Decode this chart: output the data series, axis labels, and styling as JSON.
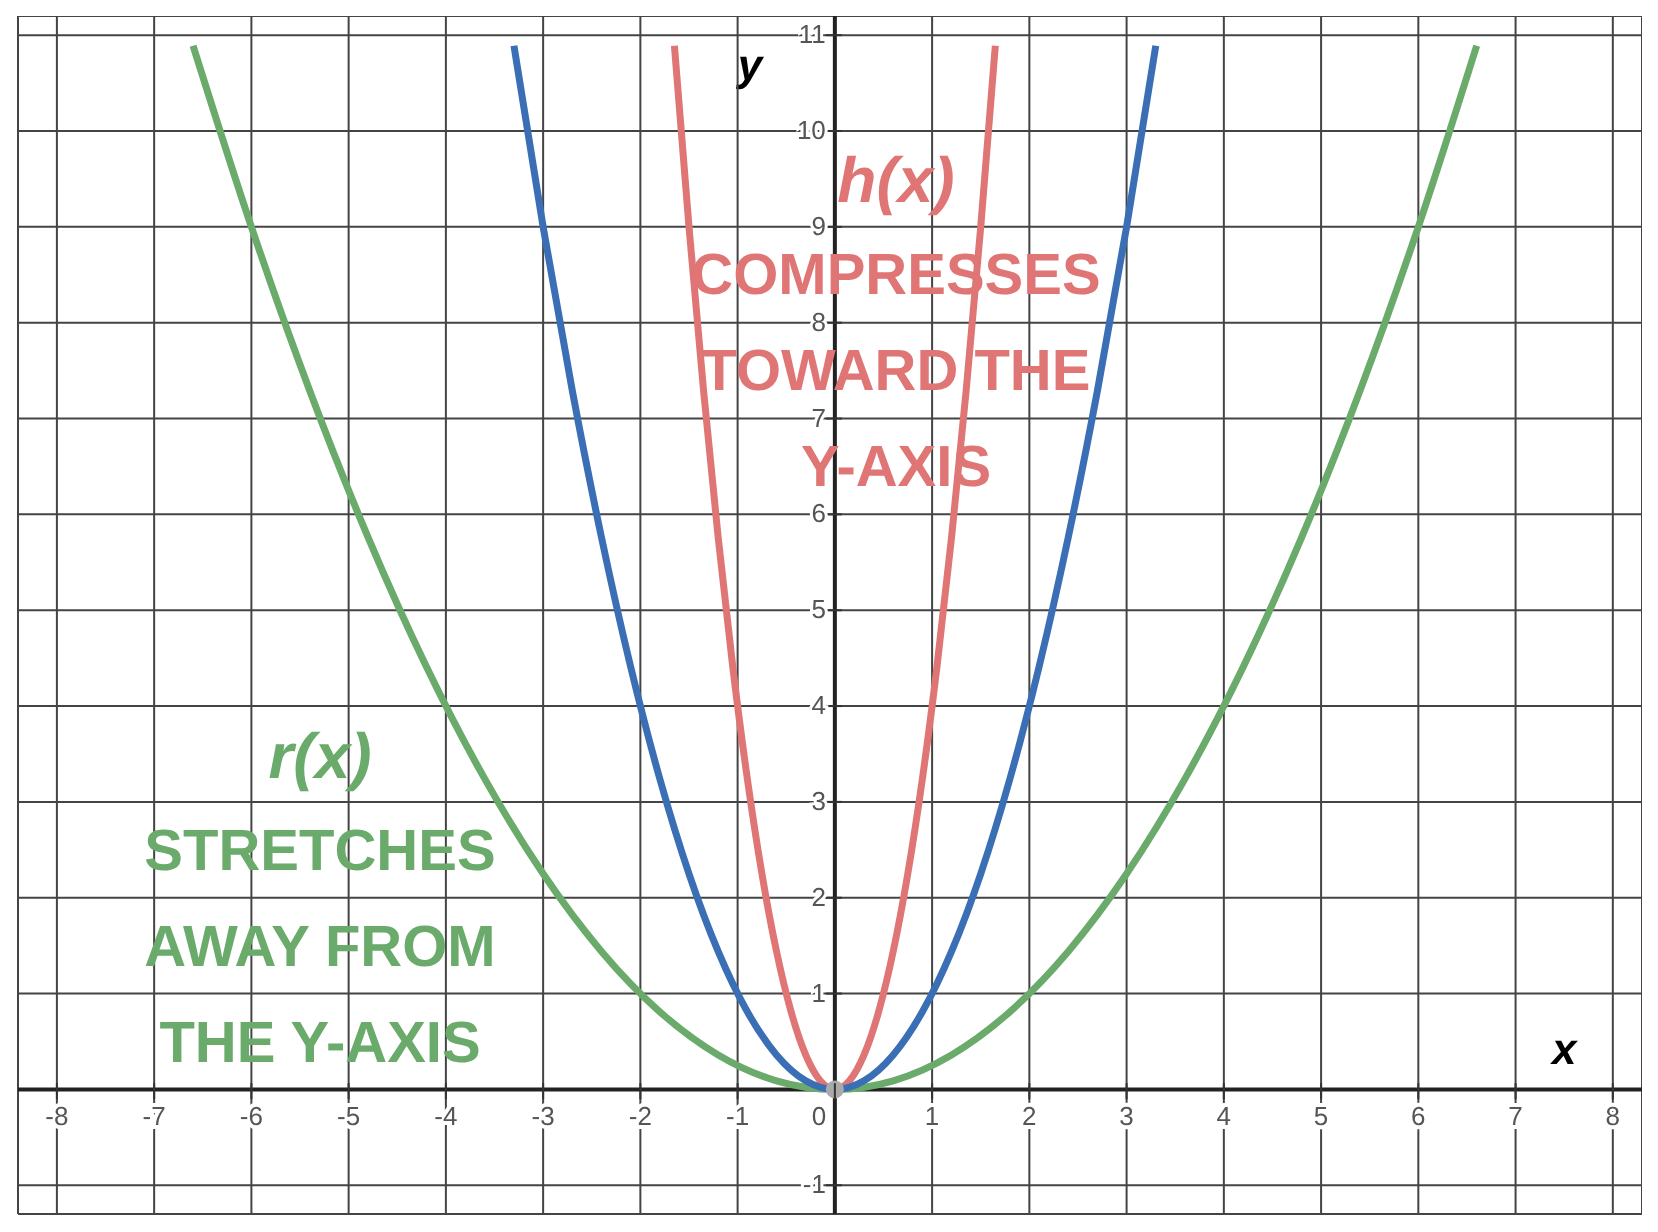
{
  "chart_data": {
    "type": "line",
    "xlabel": "x",
    "ylabel": "y",
    "xlim": [
      -8.4,
      8.3
    ],
    "ylim": [
      -1.3,
      11.2
    ],
    "xticks": [
      -8,
      -7,
      -6,
      -5,
      -4,
      -3,
      -2,
      -1,
      0,
      1,
      2,
      3,
      4,
      5,
      6,
      7,
      8
    ],
    "yticks": [
      -1,
      1,
      2,
      3,
      4,
      5,
      6,
      7,
      8,
      9,
      10,
      11
    ],
    "grid": true,
    "marker": "none",
    "line_style": "solid",
    "annotations": [
      "COMPRESSES TOWARD THE Y-AXIS",
      "STRETCHES AWAY FROM THE Y-AXIS"
    ],
    "series": [
      {
        "name": "h(x)",
        "color": "#e07575",
        "x": [
          -1.65,
          -1.5,
          -1.35,
          -1.2,
          -1.05,
          -0.9,
          -0.75,
          -0.6,
          -0.45,
          -0.3,
          -0.15,
          0,
          0.15,
          0.3,
          0.45,
          0.6,
          0.75,
          0.9,
          1.05,
          1.2,
          1.35,
          1.5,
          1.65
        ],
        "values": [
          10.89,
          9,
          7.29,
          5.76,
          4.41,
          3.24,
          2.25,
          1.44,
          0.81,
          0.36,
          0.09,
          0,
          0.09,
          0.36,
          0.81,
          1.44,
          2.25,
          3.24,
          4.41,
          5.76,
          7.29,
          9,
          10.89
        ]
      },
      {
        "name": "r(x)",
        "color": "#6aaa6a",
        "x": [
          -6.6,
          -6,
          -5.4,
          -4.8,
          -4.2,
          -3.6,
          -3,
          -2.4,
          -1.8,
          -1.2,
          -0.6,
          0,
          0.6,
          1.2,
          1.8,
          2.4,
          3,
          3.6,
          4.2,
          4.8,
          5.4,
          6,
          6.6
        ],
        "values": [
          10.89,
          9,
          7.29,
          5.76,
          4.41,
          3.24,
          2.25,
          1.44,
          0.81,
          0.36,
          0.09,
          0,
          0.09,
          0.36,
          0.81,
          1.44,
          2.25,
          3.24,
          4.41,
          5.76,
          7.29,
          9,
          10.89
        ]
      },
      {
        "color": "#3a6fb5",
        "x": [
          -3.3,
          -3,
          -2.7,
          -2.4,
          -2.1,
          -1.8,
          -1.5,
          -1.2,
          -0.9,
          -0.6,
          -0.3,
          0,
          0.3,
          0.6,
          0.9,
          1.2,
          1.5,
          1.8,
          2.1,
          2.4,
          2.7,
          3,
          3.3
        ],
        "values": [
          10.89,
          9,
          7.29,
          5.76,
          4.41,
          3.24,
          2.25,
          1.44,
          0.81,
          0.36,
          0.09,
          0,
          0.09,
          0.36,
          0.81,
          1.44,
          2.25,
          3.24,
          4.41,
          5.76,
          7.29,
          9,
          10.89
        ]
      },
      {
        "type": "scatter",
        "marker": "circle",
        "color": "#aaaaaa",
        "x": [
          0
        ],
        "values": [
          0
        ]
      }
    ]
  }
}
